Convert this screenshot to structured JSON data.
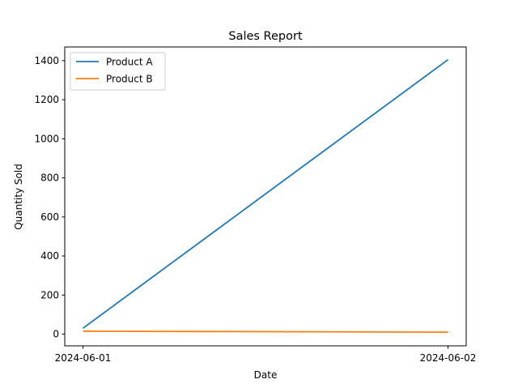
{
  "chart_data": {
    "type": "line",
    "title": "Sales Report",
    "xlabel": "Date",
    "ylabel": "Quantity Sold",
    "x": [
      "2024-06-01",
      "2024-06-02"
    ],
    "ylim": [
      -60,
      1470
    ],
    "yticks": [
      0,
      200,
      400,
      600,
      800,
      1000,
      1200,
      1400
    ],
    "grid": false,
    "legend_position": "top-left",
    "series": [
      {
        "name": "Product A",
        "color": "#1f77b4",
        "values": [
          30,
          1405
        ]
      },
      {
        "name": "Product B",
        "color": "#ff7f0e",
        "values": [
          15,
          10
        ]
      }
    ]
  }
}
